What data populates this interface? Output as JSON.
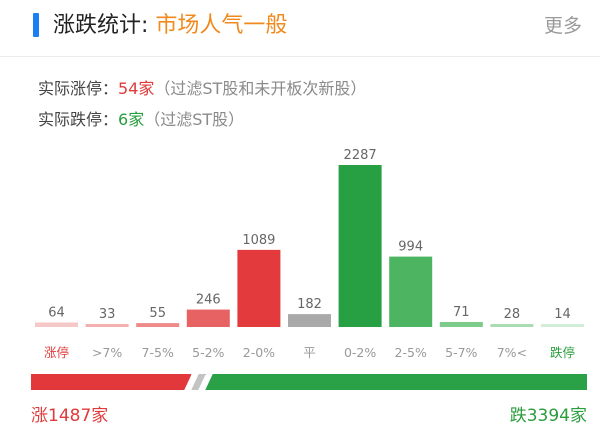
{
  "header": {
    "title_prefix": "涨跌统计: ",
    "title_value": "市场人气一般",
    "more_label": "更多"
  },
  "stats": {
    "limit_up_label": "实际涨停：",
    "limit_up_value": "54家",
    "limit_up_note": "（过滤ST股和未开板次新股）",
    "limit_down_label": "实际跌停：",
    "limit_down_value": "6家",
    "limit_down_note": "（过滤ST股）"
  },
  "chart_data": {
    "type": "bar",
    "categories": [
      "涨停",
      ">7%",
      "7-5%",
      "5-2%",
      "2-0%",
      "平",
      "0-2%",
      "2-5%",
      "5-7%",
      "7%<",
      "跌停"
    ],
    "values": [
      64,
      33,
      55,
      246,
      1089,
      182,
      2287,
      994,
      71,
      28,
      14
    ],
    "colors": [
      "#f6c9c9",
      "#f3b0b0",
      "#ee8a8a",
      "#e76363",
      "#e23a3d",
      "#a9a9a9",
      "#27a043",
      "#4db562",
      "#7ccb8a",
      "#a9dcb3",
      "#d3eed8"
    ],
    "tick_colors": [
      "#e03a3a",
      "#999999",
      "#999999",
      "#999999",
      "#999999",
      "#999999",
      "#999999",
      "#999999",
      "#999999",
      "#999999",
      "#2a9d3d"
    ]
  },
  "footer": {
    "up_total": "涨1487家",
    "down_total": "跌3394家"
  },
  "breadth": {
    "up": 1487,
    "flat": 182,
    "down": 3394
  }
}
